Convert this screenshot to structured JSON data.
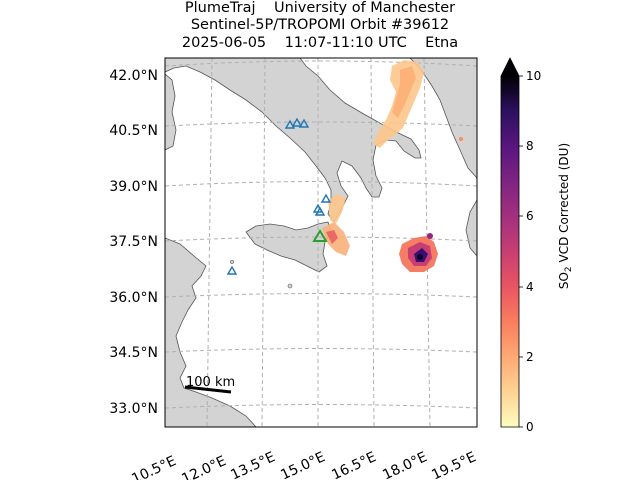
{
  "title": {
    "line1": "PlumeTraj    University of Manchester",
    "line2": "Sentinel-5P/TROPOMI Orbit #39612",
    "line3": "2025-06-05    11:07-11:10 UTC    Etna"
  },
  "axes": {
    "lat_labels": [
      "42.0°N",
      "40.5°N",
      "39.0°N",
      "37.5°N",
      "36.0°N",
      "34.5°N",
      "33.0°N"
    ],
    "lon_labels": [
      "10.5°E",
      "12.0°E",
      "13.5°E",
      "15.0°E",
      "16.5°E",
      "18.0°E",
      "19.5°E"
    ]
  },
  "scale_bar": {
    "label": "100 km"
  },
  "colorbar": {
    "label_prefix": "SO",
    "label_sub": "2",
    "label_suffix": " VCD Corrected (DU)",
    "ticks": [
      "0",
      "2",
      "4",
      "6",
      "8",
      "10"
    ],
    "min": 0,
    "max": 10,
    "extend": "max",
    "colormap": "magma_r"
  },
  "markers": {
    "volcano_target": "Etna",
    "target_color": "#2ca02c",
    "other_color": "#1f77b4"
  },
  "colors": {
    "land": "#d3d3d3",
    "sea": "#ffffff",
    "grid": "#b0b0b0"
  }
}
